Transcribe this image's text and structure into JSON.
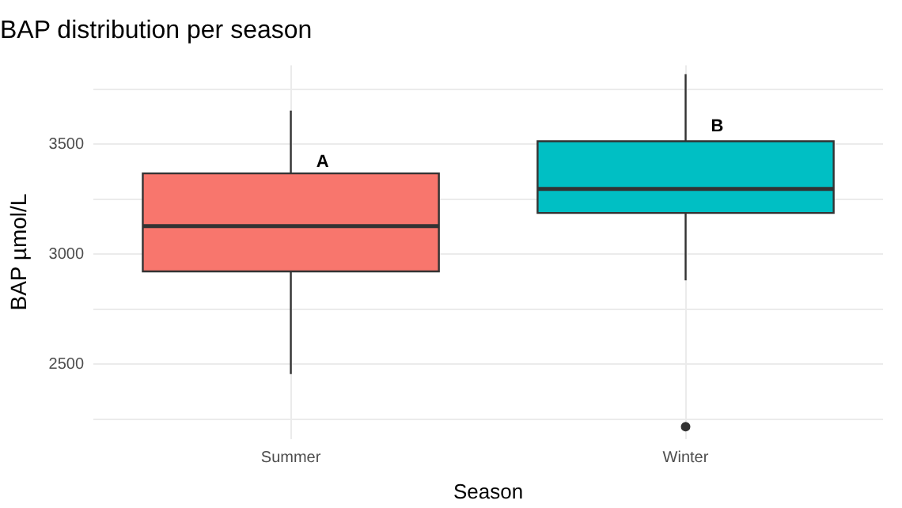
{
  "chart_data": {
    "type": "box",
    "title": "BAP distribution per season",
    "xlabel": "Season",
    "ylabel": "BAP µmol/L",
    "categories": [
      "Summer",
      "Winter"
    ],
    "boxes": [
      {
        "low": 2455,
        "q1": 2922,
        "median": 3128,
        "q3": 3368,
        "high": 3654
      },
      {
        "low": 2882,
        "q1": 3188,
        "median": 3297,
        "q3": 3514,
        "high": 3819,
        "outliers": [
          2216
        ]
      }
    ],
    "colors": [
      "#f8766d",
      "#00bfc4"
    ],
    "ylim": [
      2160,
      3860
    ],
    "yticks": [
      {
        "value": 2250,
        "label": null
      },
      2500,
      {
        "value": 2750,
        "label": null
      },
      3000,
      {
        "value": 3250,
        "label": null
      },
      3500,
      {
        "value": 3750,
        "label": null
      }
    ],
    "grid": true,
    "legend": false,
    "annotations": [
      {
        "text": "A",
        "x": "Summer",
        "y": 3420
      },
      {
        "text": "B",
        "x": "Winter",
        "y": 3582
      }
    ]
  }
}
